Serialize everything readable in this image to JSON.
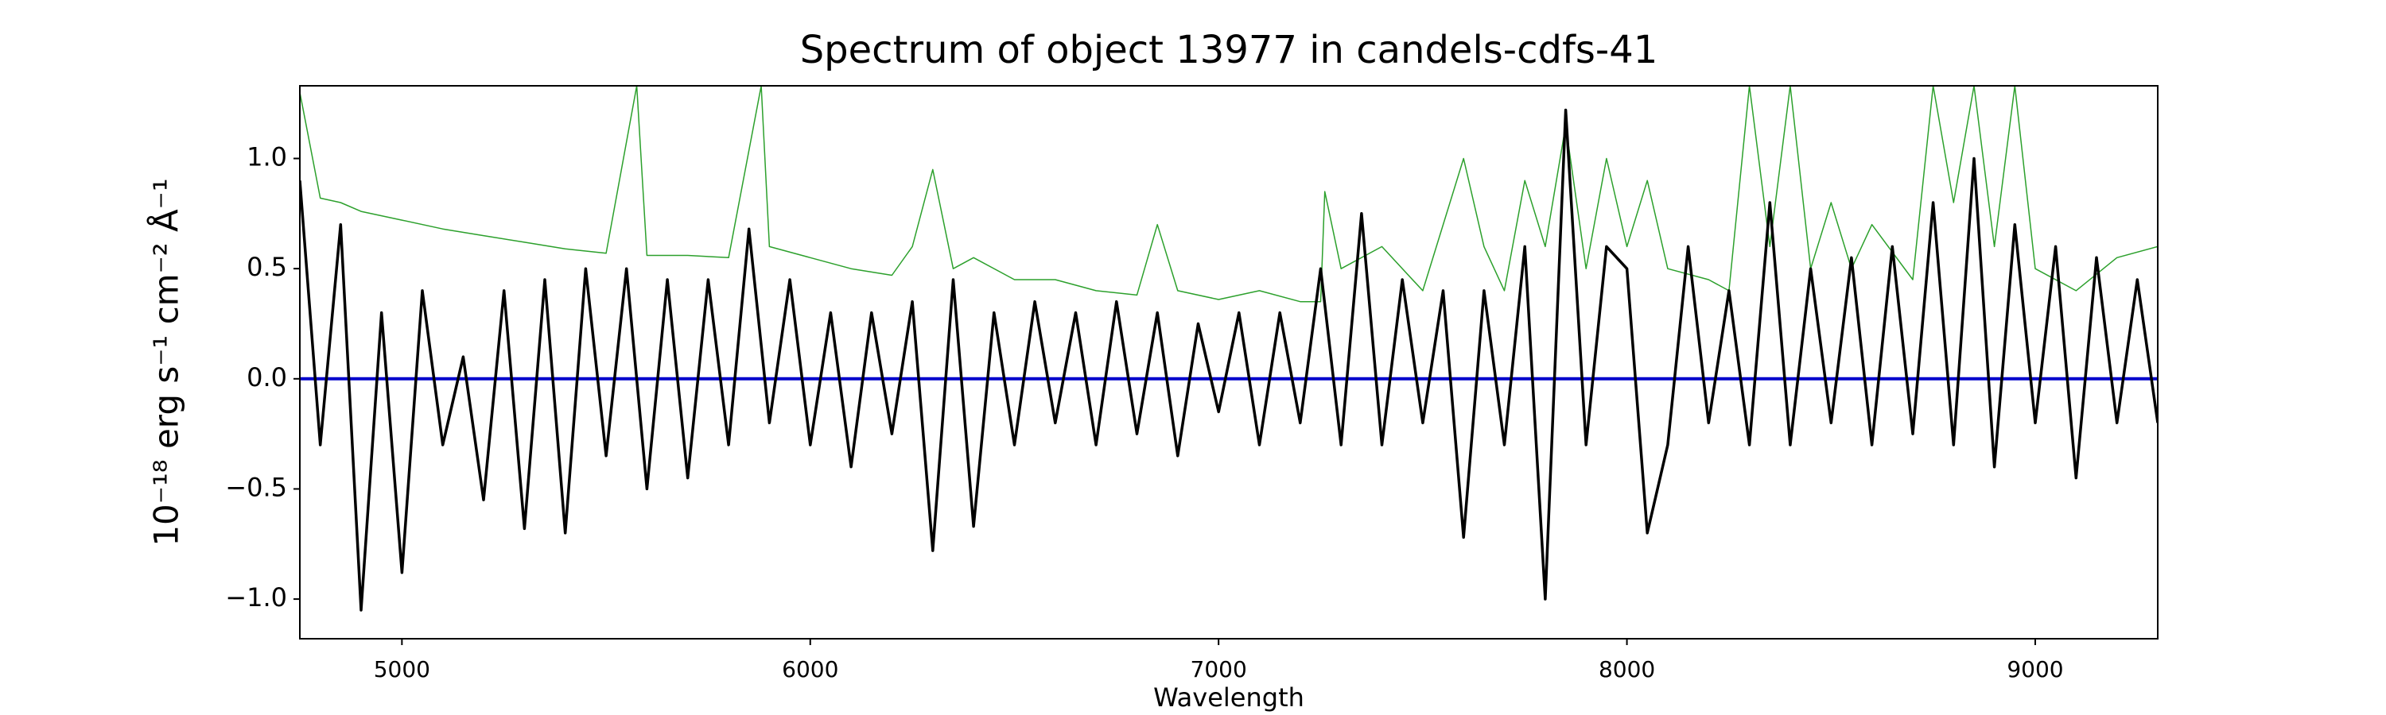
{
  "chart_data": {
    "type": "line",
    "title": "Spectrum of object 13977 in candels-cdfs-41",
    "xlabel": "Wavelength",
    "ylabel": "10⁻¹⁸ erg s⁻¹ cm⁻² Å⁻¹",
    "xlim": [
      4750,
      9300
    ],
    "ylim": [
      -1.18,
      1.33
    ],
    "xticks": [
      5000,
      6000,
      7000,
      8000,
      9000
    ],
    "yticks": [
      {
        "value": -1.0,
        "label": "−1.0"
      },
      {
        "value": -0.5,
        "label": "−0.5"
      },
      {
        "value": 0.0,
        "label": "0.0"
      },
      {
        "value": 0.5,
        "label": "0.5"
      },
      {
        "value": 1.0,
        "label": "1.0"
      }
    ],
    "series": [
      {
        "color": "#2ca02c",
        "x": [
          4750,
          4800,
          4850,
          4900,
          4950,
          5000,
          5100,
          5200,
          5300,
          5400,
          5500,
          5575,
          5600,
          5700,
          5800,
          5880,
          5900,
          6000,
          6100,
          6200,
          6250,
          6300,
          6350,
          6400,
          6500,
          6600,
          6700,
          6800,
          6850,
          6900,
          7000,
          7100,
          7200,
          7250,
          7260,
          7300,
          7400,
          7500,
          7600,
          7650,
          7700,
          7750,
          7800,
          7850,
          7900,
          7950,
          8000,
          8050,
          8100,
          8200,
          8250,
          8300,
          8350,
          8400,
          8450,
          8500,
          8550,
          8600,
          8700,
          8750,
          8800,
          8850,
          8900,
          8950,
          9000,
          9100,
          9200,
          9300
        ],
        "values": [
          1.3,
          0.82,
          0.8,
          0.76,
          0.74,
          0.72,
          0.68,
          0.65,
          0.62,
          0.59,
          0.57,
          1.33,
          0.56,
          0.56,
          0.55,
          1.33,
          0.6,
          0.55,
          0.5,
          0.47,
          0.6,
          0.95,
          0.5,
          0.55,
          0.45,
          0.45,
          0.4,
          0.38,
          0.7,
          0.4,
          0.36,
          0.4,
          0.35,
          0.35,
          0.85,
          0.5,
          0.6,
          0.4,
          1.0,
          0.6,
          0.4,
          0.9,
          0.6,
          1.15,
          0.5,
          1.0,
          0.6,
          0.9,
          0.5,
          0.45,
          0.4,
          1.33,
          0.6,
          1.33,
          0.5,
          0.8,
          0.5,
          0.7,
          0.45,
          1.33,
          0.8,
          1.33,
          0.6,
          1.33,
          0.5,
          0.4,
          0.55,
          0.6
        ]
      },
      {
        "color": "#0000cc",
        "x": [
          4750,
          9300
        ],
        "values": [
          0,
          0
        ]
      },
      {
        "color": "#000000",
        "x": [
          4750,
          4800,
          4850,
          4900,
          4950,
          5000,
          5050,
          5100,
          5150,
          5200,
          5250,
          5300,
          5350,
          5400,
          5450,
          5500,
          5550,
          5600,
          5650,
          5700,
          5750,
          5800,
          5850,
          5900,
          5950,
          6000,
          6050,
          6100,
          6150,
          6200,
          6250,
          6300,
          6350,
          6400,
          6450,
          6500,
          6550,
          6600,
          6650,
          6700,
          6750,
          6800,
          6850,
          6900,
          6950,
          7000,
          7050,
          7100,
          7150,
          7200,
          7250,
          7300,
          7350,
          7400,
          7450,
          7500,
          7550,
          7600,
          7650,
          7700,
          7750,
          7800,
          7850,
          7900,
          7950,
          8000,
          8050,
          8100,
          8150,
          8200,
          8250,
          8300,
          8350,
          8400,
          8450,
          8500,
          8550,
          8600,
          8650,
          8700,
          8750,
          8800,
          8850,
          8900,
          8950,
          9000,
          9050,
          9100,
          9150,
          9200,
          9250,
          9300
        ],
        "values": [
          0.9,
          -0.3,
          0.7,
          -1.05,
          0.3,
          -0.88,
          0.4,
          -0.3,
          0.1,
          -0.55,
          0.4,
          -0.68,
          0.45,
          -0.7,
          0.5,
          -0.35,
          0.5,
          -0.5,
          0.45,
          -0.45,
          0.45,
          -0.3,
          0.68,
          -0.2,
          0.45,
          -0.3,
          0.3,
          -0.4,
          0.3,
          -0.25,
          0.35,
          -0.78,
          0.45,
          -0.67,
          0.3,
          -0.3,
          0.35,
          -0.2,
          0.3,
          -0.3,
          0.35,
          -0.25,
          0.3,
          -0.35,
          0.25,
          -0.15,
          0.3,
          -0.3,
          0.3,
          -0.2,
          0.5,
          -0.3,
          0.75,
          -0.3,
          0.45,
          -0.2,
          0.4,
          -0.72,
          0.4,
          -0.3,
          0.6,
          -1.0,
          1.22,
          -0.3,
          0.6,
          0.5,
          -0.7,
          -0.3,
          0.6,
          -0.2,
          0.4,
          -0.3,
          0.8,
          -0.3,
          0.5,
          -0.2,
          0.55,
          -0.3,
          0.6,
          -0.25,
          0.8,
          -0.3,
          1.0,
          -0.4,
          0.7,
          -0.2,
          0.6,
          -0.45,
          0.55,
          -0.2,
          0.45,
          -0.2
        ]
      }
    ]
  }
}
